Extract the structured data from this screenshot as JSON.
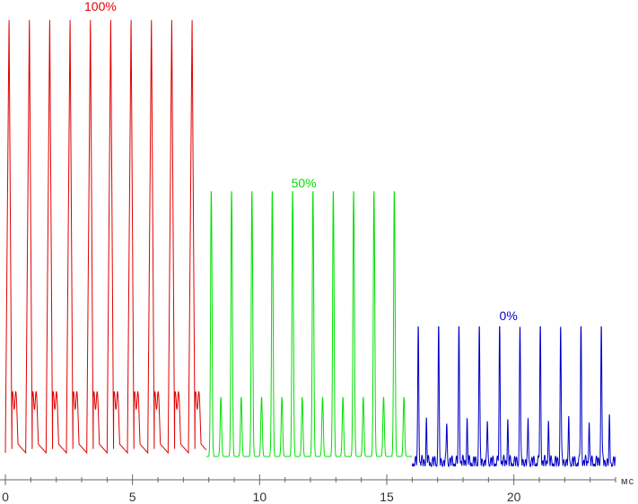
{
  "chart_data": {
    "type": "line",
    "title": "",
    "xlabel": "",
    "ylabel": "",
    "x_unit": "мс",
    "xlim": [
      0,
      24
    ],
    "xticks": [
      0,
      5,
      10,
      15,
      20
    ],
    "minor_tick_step": 1,
    "grid": false,
    "legend": "inline labels above each segment",
    "series": [
      {
        "name": "100%",
        "color": "#e00000",
        "x_range": [
          0,
          7.9
        ],
        "period_ms": 0.8,
        "level_max": 1.0,
        "level_min": 0.03
      },
      {
        "name": "50%",
        "color": "#00e000",
        "x_range": [
          7.9,
          16.0
        ],
        "period_ms": 0.8,
        "level_max": 0.61,
        "level_min": 0.01
      },
      {
        "name": "0%",
        "color": "#0000c8",
        "x_range": [
          16.0,
          24.0
        ],
        "period_ms": 0.8,
        "level_max": 0.31,
        "level_min": 0.0
      }
    ]
  }
}
